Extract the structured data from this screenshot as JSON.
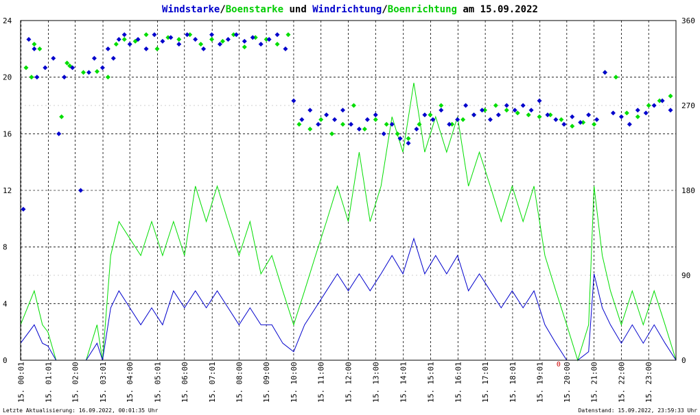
{
  "chart_data": {
    "type": "line",
    "title": {
      "parts": [
        {
          "text": "Windstarke",
          "color": "#0000cc"
        },
        {
          "text": "/",
          "color": "#000000"
        },
        {
          "text": "Boenstarke",
          "color": "#00cc00"
        },
        {
          "text": " und ",
          "color": "#000000"
        },
        {
          "text": "Windrichtung",
          "color": "#0000cc"
        },
        {
          "text": "/",
          "color": "#000000"
        },
        {
          "text": "Boenrichtung",
          "color": "#00cc00"
        },
        {
          "text": " am 15.09.2022",
          "color": "#000000"
        }
      ]
    },
    "y_left": {
      "min": 0,
      "max": 24,
      "ticks": [
        0,
        4,
        8,
        12,
        16,
        20,
        24
      ]
    },
    "y_right": {
      "min": 0,
      "max": 360,
      "ticks": [
        0,
        90,
        180,
        270,
        360
      ]
    },
    "x": {
      "min": 0,
      "max": 24,
      "tick_hours": [
        0.0167,
        1.0167,
        2,
        3.0167,
        4,
        5.0167,
        6,
        7.0167,
        8,
        9,
        10,
        11,
        12,
        13,
        14.0167,
        15.0167,
        16.0167,
        17.0167,
        18.0167,
        19.0167,
        20,
        21,
        22,
        23
      ],
      "tick_labels": [
        "15. 00:01",
        "15. 01:01",
        "15. 02:00",
        "15. 03:01",
        "15. 04:00",
        "15. 05:01",
        "15. 06:00",
        "15. 07:01",
        "15. 08:00",
        "15. 09:00",
        "15. 10:00",
        "15. 11:00",
        "15. 12:00",
        "15. 13:00",
        "15. 14:01",
        "15. 15:01",
        "15. 16:01",
        "15. 17:01",
        "15. 18:01",
        "15. 19:01",
        "15. 20:00",
        "15. 21:00",
        "15. 22:00",
        "15. 23:00"
      ]
    },
    "grid": true,
    "colors": {
      "wind": "#0000cc",
      "gust": "#00dd00",
      "marker": "#cc0000"
    },
    "series": [
      {
        "kind": "speed",
        "color": "#00dd00",
        "x": [
          0,
          0.5,
          0.8,
          1,
          1.3,
          1.6,
          2,
          2.4,
          2.8,
          3,
          3.3,
          3.6,
          4,
          4.4,
          4.8,
          5.2,
          5.6,
          6,
          6.4,
          6.8,
          7.2,
          7.6,
          8,
          8.4,
          8.8,
          9.2,
          9.6,
          10,
          10.4,
          10.8,
          11.2,
          11.6,
          12,
          12.4,
          12.8,
          13.2,
          13.6,
          14,
          14.4,
          14.8,
          15.2,
          15.6,
          16,
          16.4,
          16.8,
          17.2,
          17.6,
          18,
          18.4,
          18.8,
          19.2,
          19.6,
          20,
          20.4,
          20.8,
          21,
          21.3,
          21.6,
          22,
          22.4,
          22.8,
          23.2,
          23.6,
          24
        ],
        "y": [
          2.5,
          4.9,
          2.5,
          2,
          0,
          0,
          0,
          0,
          2.5,
          0,
          7.4,
          9.8,
          8.6,
          7.4,
          9.8,
          7.4,
          9.8,
          7.4,
          12.3,
          9.8,
          12.3,
          9.8,
          7.4,
          9.8,
          6.1,
          7.4,
          4.9,
          2.5,
          4.9,
          7.4,
          9.8,
          12.3,
          9.8,
          14.7,
          9.8,
          12.3,
          17.2,
          14.7,
          19.6,
          14.7,
          17.2,
          14.7,
          17.2,
          12.3,
          14.7,
          12.3,
          9.8,
          12.3,
          9.8,
          12.3,
          7.4,
          4.9,
          2.5,
          0,
          2.5,
          12.3,
          7.4,
          4.9,
          2.5,
          4.9,
          2.5,
          4.9,
          2.5,
          0
        ]
      },
      {
        "kind": "speed",
        "color": "#0000cc",
        "x": [
          0,
          0.5,
          0.8,
          1,
          1.3,
          1.6,
          2,
          2.4,
          2.8,
          3,
          3.3,
          3.6,
          4,
          4.4,
          4.8,
          5.2,
          5.6,
          6,
          6.4,
          6.8,
          7.2,
          7.6,
          8,
          8.4,
          8.8,
          9.2,
          9.6,
          10,
          10.4,
          10.8,
          11.2,
          11.6,
          12,
          12.4,
          12.8,
          13.2,
          13.6,
          14,
          14.4,
          14.8,
          15.2,
          15.6,
          16,
          16.4,
          16.8,
          17.2,
          17.6,
          18,
          18.4,
          18.8,
          19.2,
          19.6,
          20,
          20.4,
          20.8,
          21,
          21.3,
          21.6,
          22,
          22.4,
          22.8,
          23.2,
          23.6,
          24
        ],
        "y": [
          1.2,
          2.5,
          1.2,
          1,
          0,
          0,
          0,
          0,
          1.2,
          0,
          3.7,
          4.9,
          3.7,
          2.5,
          3.7,
          2.5,
          4.9,
          3.7,
          4.9,
          3.7,
          4.9,
          3.7,
          2.5,
          3.7,
          2.5,
          2.5,
          1.2,
          0.6,
          2.5,
          3.7,
          4.9,
          6.1,
          4.9,
          6.1,
          4.9,
          6.1,
          7.4,
          6.1,
          8.6,
          6.1,
          7.4,
          6.1,
          7.4,
          4.9,
          6.1,
          4.9,
          3.7,
          4.9,
          3.7,
          4.9,
          2.5,
          1.2,
          0,
          0,
          0.6,
          6.1,
          3.7,
          2.5,
          1.2,
          2.5,
          1.2,
          2.5,
          1.2,
          0
        ]
      },
      {
        "kind": "direction",
        "color": "#00dd00",
        "x": [
          0.2,
          0.4,
          0.5,
          0.7,
          1.5,
          1.7,
          1.8,
          2.3,
          2.8,
          3.2,
          3.5,
          3.8,
          4.2,
          4.6,
          5.0,
          5.4,
          5.8,
          6.2,
          6.6,
          7.0,
          7.4,
          7.8,
          8.2,
          8.6,
          9.0,
          9.4,
          9.8,
          10.2,
          10.6,
          11.0,
          11.4,
          11.8,
          12.2,
          12.6,
          13.0,
          13.4,
          13.8,
          14.2,
          14.6,
          15.0,
          15.4,
          15.8,
          16.2,
          16.6,
          17.0,
          17.4,
          17.8,
          18.2,
          18.6,
          19.0,
          19.4,
          19.8,
          20.2,
          20.6,
          21.0,
          21.4,
          21.8,
          22.2,
          22.6,
          23.0,
          23.4,
          23.8
        ],
        "y": [
          310,
          300,
          335,
          330,
          258,
          315,
          312,
          305,
          306,
          300,
          335,
          340,
          338,
          345,
          330,
          342,
          340,
          345,
          335,
          340,
          338,
          345,
          332,
          342,
          340,
          335,
          345,
          250,
          245,
          255,
          240,
          250,
          270,
          245,
          255,
          250,
          240,
          235,
          250,
          260,
          270,
          250,
          255,
          260,
          265,
          270,
          265,
          262,
          260,
          258,
          260,
          255,
          248,
          252,
          250,
          305,
          300,
          262,
          258,
          270,
          275,
          280
        ]
      },
      {
        "kind": "direction",
        "color": "#0000cc",
        "x": [
          0.1,
          0.3,
          0.5,
          0.6,
          0.9,
          1.2,
          1.4,
          1.6,
          1.9,
          2.2,
          2.5,
          2.7,
          3.0,
          3.2,
          3.4,
          3.6,
          3.8,
          4.0,
          4.3,
          4.6,
          4.9,
          5.2,
          5.5,
          5.8,
          6.1,
          6.4,
          6.7,
          7.0,
          7.3,
          7.6,
          7.9,
          8.2,
          8.5,
          8.8,
          9.1,
          9.4,
          9.7,
          10.0,
          10.3,
          10.6,
          10.9,
          11.2,
          11.5,
          11.8,
          12.1,
          12.4,
          12.7,
          13.0,
          13.3,
          13.6,
          13.9,
          14.2,
          14.5,
          14.8,
          15.1,
          15.4,
          15.7,
          16.0,
          16.3,
          16.6,
          16.9,
          17.2,
          17.5,
          17.8,
          18.1,
          18.4,
          18.7,
          19.0,
          19.3,
          19.6,
          19.9,
          20.2,
          20.5,
          20.8,
          21.1,
          21.4,
          21.7,
          22.0,
          22.3,
          22.6,
          22.9,
          23.2,
          23.5,
          23.8
        ],
        "y": [
          160,
          340,
          330,
          300,
          310,
          320,
          240,
          300,
          310,
          180,
          305,
          320,
          310,
          330,
          320,
          340,
          345,
          335,
          340,
          330,
          345,
          338,
          342,
          335,
          345,
          340,
          330,
          345,
          335,
          340,
          345,
          338,
          342,
          335,
          340,
          345,
          330,
          275,
          255,
          265,
          250,
          260,
          255,
          265,
          250,
          245,
          255,
          260,
          240,
          250,
          235,
          230,
          245,
          260,
          255,
          265,
          250,
          255,
          270,
          260,
          265,
          255,
          260,
          270,
          265,
          270,
          265,
          275,
          260,
          255,
          250,
          258,
          252,
          260,
          255,
          305,
          262,
          258,
          250,
          265,
          262,
          270,
          275,
          265
        ]
      }
    ],
    "zero_marker": {
      "x": 19.7,
      "label": "0"
    }
  },
  "footer": {
    "left": "Letzte Aktualisierung: 16.09.2022, 00:01:35 Uhr",
    "right": "Datenstand: 15.09.2022, 23:59:33 Uhr"
  }
}
